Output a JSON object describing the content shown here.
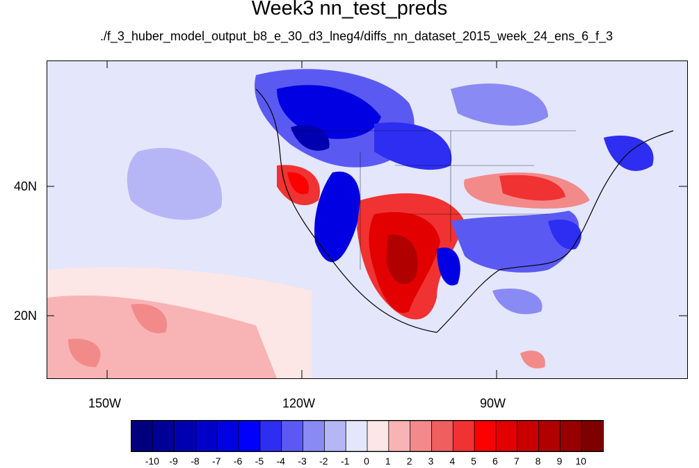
{
  "title": "Week3 nn_test_preds",
  "subtitle": "./f_3_huber_model_output_b8_e_30_d3_lneg4/diffs_nn_dataset_2015_week_24_ens_6_f_3",
  "axes": {
    "lat_labels": [
      "40N",
      "20N"
    ],
    "lon_labels": [
      "150W",
      "120W",
      "90W"
    ]
  },
  "colorbar": {
    "labels": [
      "-10",
      "-9",
      "-8",
      "-7",
      "-6",
      "-5",
      "-4",
      "-3",
      "-2",
      "-1",
      "0",
      "1",
      "2",
      "3",
      "4",
      "5",
      "6",
      "7",
      "8",
      "9",
      "10"
    ],
    "colors": [
      "#00007f",
      "#000096",
      "#0000b0",
      "#0000c9",
      "#0000e2",
      "#0000fb",
      "#2e2ef2",
      "#5a5af3",
      "#8a8af4",
      "#b6b6f7",
      "#e4e6fb",
      "#fde6e6",
      "#f8b4b4",
      "#f38a8a",
      "#ef5f5f",
      "#f03232",
      "#fb0000",
      "#e20000",
      "#c90000",
      "#b00000",
      "#960000",
      "#7f0000"
    ]
  },
  "chart_data": {
    "type": "heatmap",
    "title": "Week3 nn_test_preds",
    "subtitle": "./f_3_huber_model_output_b8_e_30_d3_lneg4/diffs_nn_dataset_2015_week_24_ens_6_f_3",
    "colorbar_ticks": [
      -10,
      -9,
      -8,
      -7,
      -6,
      -5,
      -4,
      -3,
      -2,
      -1,
      0,
      1,
      2,
      3,
      4,
      5,
      6,
      7,
      8,
      9,
      10
    ],
    "lat_ticks": [
      "40N",
      "20N"
    ],
    "lon_ticks": [
      "150W",
      "120W",
      "90W"
    ]
  }
}
